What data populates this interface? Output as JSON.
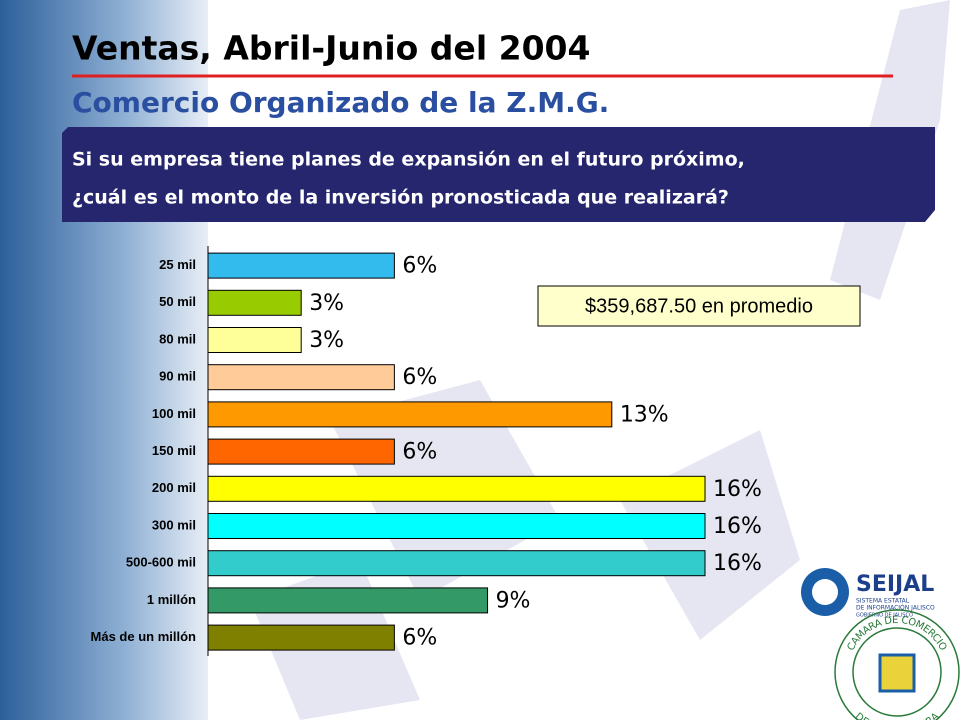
{
  "chart_data": {
    "type": "bar",
    "orientation": "horizontal",
    "title": "Ventas, Abril-Junio del 2004",
    "subtitle": "Comercio Organizado de la Z.M.G.",
    "question": [
      "Si su empresa tiene planes de expansión en el futuro próximo,",
      "¿cuál es el monto de la inversión pronosticada que realizará?"
    ],
    "annotation": "$359,687.50 en promedio",
    "categories": [
      "25 mil",
      "50 mil",
      "80 mil",
      "90 mil",
      "100 mil",
      "150 mil",
      "200 mil",
      "300 mil",
      "500-600 mil",
      "1 millón",
      "Más de un millón"
    ],
    "values": [
      6,
      3,
      3,
      6,
      13,
      6,
      16,
      16,
      16,
      9,
      6
    ],
    "value_labels": [
      "6%",
      "3%",
      "3%",
      "6%",
      "13%",
      "6%",
      "16%",
      "16%",
      "16%",
      "9%",
      "6%"
    ],
    "colors": [
      "#33bbee",
      "#99cc00",
      "#ffff99",
      "#ffcc99",
      "#ff9900",
      "#ff6600",
      "#ffff00",
      "#00ffff",
      "#33cccc",
      "#339966",
      "#808000"
    ]
  },
  "logos": {
    "seijal": "SEIJAL",
    "seijal_line1": "SISTEMA ESTATAL",
    "seijal_line2": "DE INFORMACIÓN JALISCO",
    "seijal_line3": "GOBIERNO DE JALISCO",
    "camara_top": "CAMARA DE COMERCIO",
    "camara_bottom": "DE GUADALAJARA"
  }
}
